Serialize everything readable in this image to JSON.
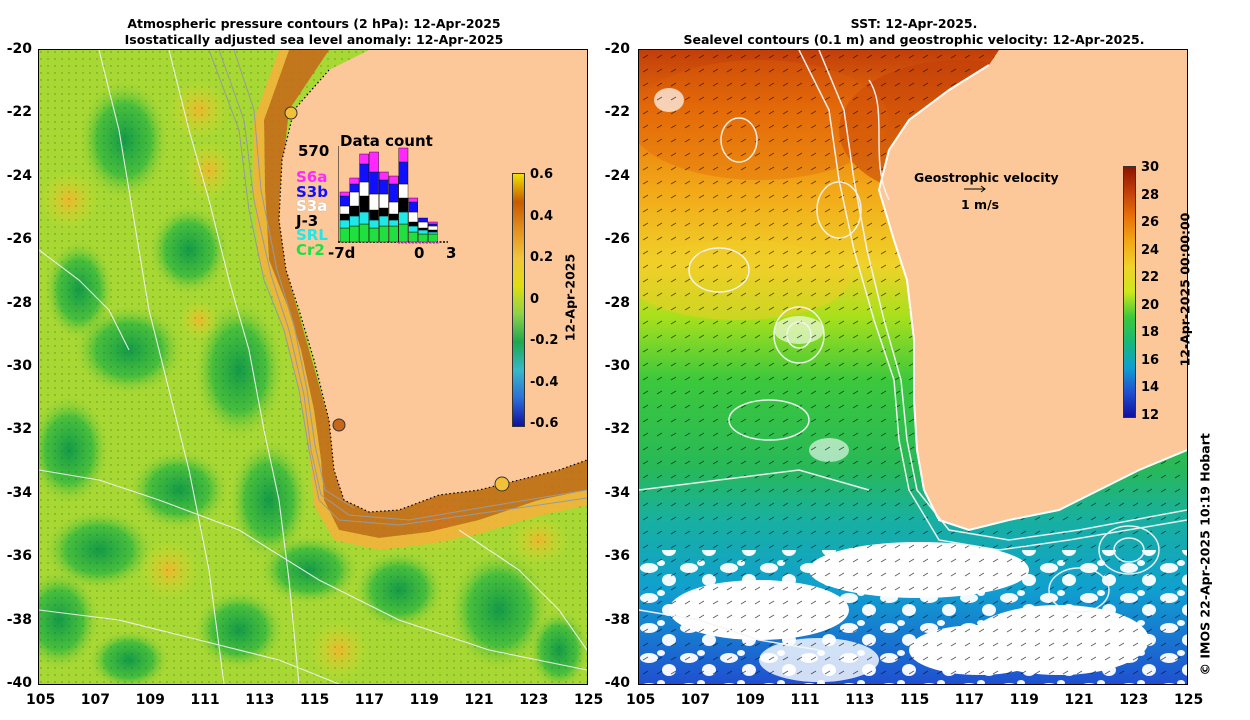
{
  "left_map": {
    "title_line1": "Atmospheric pressure contours (2 hPa): 12-Apr-2025",
    "title_line2": "Isostatically adjusted sea level anomaly: 12-Apr-2025",
    "colorbar": {
      "label": "12-Apr-2025",
      "ticks": [
        "0.6",
        "0.4",
        "0.2",
        "0",
        "-0.2",
        "-0.4",
        "-0.6"
      ],
      "stops": [
        "#f0e000",
        "#c85a00",
        "#e39020",
        "#f1c43c",
        "#dede10",
        "#8ed24a",
        "#1ea84e",
        "#37b8c8",
        "#2d6fd8",
        "#1010a0"
      ]
    },
    "inset": {
      "title": "Data count",
      "max_count": "570",
      "missions": [
        {
          "label": "S6a",
          "color": "#ff28ff"
        },
        {
          "label": "S3b",
          "color": "#1010ff"
        },
        {
          "label": "S3a",
          "color": "#ffffff"
        },
        {
          "label": "J-3",
          "color": "#000000"
        },
        {
          "label": "SRL",
          "color": "#20e8e8"
        },
        {
          "label": "Cr2",
          "color": "#20e040"
        }
      ],
      "x_labels": [
        "-7d",
        "0",
        "3"
      ]
    }
  },
  "right_map": {
    "title_line1": "SST: 12-Apr-2025.",
    "title_line2": "Sealevel contours (0.1 m) and geostrophic velocity: 12-Apr-2025.",
    "velocity_title": "Geostrophic velocity",
    "velocity_scale": "1 m/s",
    "colorbar": {
      "label": "12-Apr-2025 00:00:00",
      "ticks": [
        "30",
        "28",
        "26",
        "24",
        "22",
        "20",
        "18",
        "16",
        "14",
        "12"
      ],
      "stops": [
        "#8a1500",
        "#c23e0a",
        "#e8720a",
        "#f2a818",
        "#f0d22a",
        "#cce81c",
        "#3cc83c",
        "#18b878",
        "#10a0d0",
        "#2050d0",
        "#1010a0"
      ]
    }
  },
  "axes": {
    "lat_ticks": [
      "-20",
      "-22",
      "-24",
      "-26",
      "-28",
      "-30",
      "-32",
      "-34",
      "-36",
      "-38",
      "-40"
    ],
    "lon_ticks": [
      "105",
      "107",
      "109",
      "111",
      "113",
      "115",
      "117",
      "119",
      "121",
      "123",
      "125"
    ]
  },
  "credit": "© IMOS 22-Apr-2025 10:19 Hobart",
  "colors": {
    "land": "#fcc89a",
    "sea_left": "#a6d832",
    "sea_right": "#2aa82a"
  }
}
